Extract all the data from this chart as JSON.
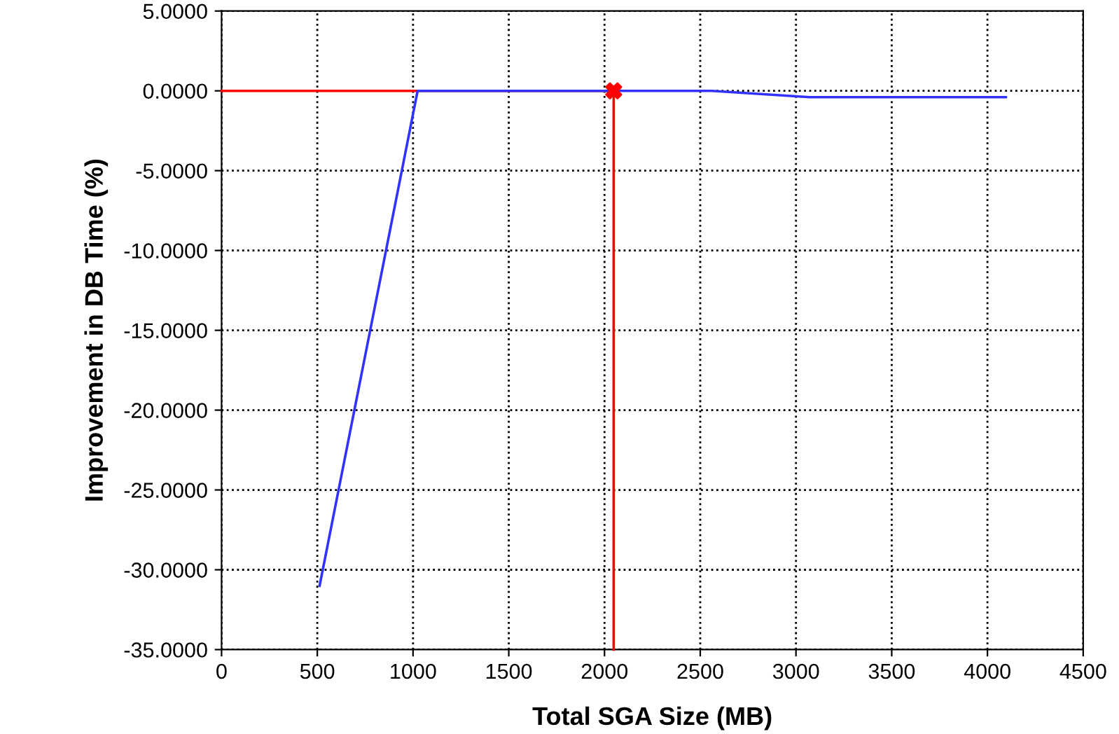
{
  "chart_data": {
    "type": "line",
    "xlabel": "Total SGA Size (MB)",
    "ylabel": "Improvement in DB Time (%)",
    "xlim": [
      0,
      4500
    ],
    "xticks": [
      0,
      500,
      1000,
      1500,
      2000,
      2500,
      3000,
      3500,
      4000,
      4500
    ],
    "ylim": [
      -35,
      5
    ],
    "yticks": [
      {
        "value": 5,
        "label": "5.0000"
      },
      {
        "value": 0,
        "label": "0.0000"
      },
      {
        "value": -5,
        "label": "-5.0000"
      },
      {
        "value": -10,
        "label": "-10.0000"
      },
      {
        "value": -15,
        "label": "-15.0000"
      },
      {
        "value": -20,
        "label": "-20.0000"
      },
      {
        "value": -25,
        "label": "-25.0000"
      },
      {
        "value": -30,
        "label": "-30.0000"
      },
      {
        "value": -35,
        "label": "-35.0000"
      }
    ],
    "grid": true,
    "marker": "none",
    "line_style": "solid",
    "series": [
      {
        "color": "#ff0000",
        "x": [
          0,
          2048,
          2048
        ],
        "values": [
          0,
          0,
          -35
        ]
      },
      {
        "color": "#3333ff",
        "x": [
          512,
          1024,
          1536,
          2048,
          2560,
          3072,
          3584,
          4096
        ],
        "values": [
          -31,
          0,
          0,
          0,
          0,
          -0.4,
          -0.4,
          -0.4
        ]
      },
      {
        "type": "scatter",
        "color": "#ff0000",
        "marker": "cross",
        "x": [
          2048
        ],
        "values": [
          0
        ]
      }
    ]
  }
}
